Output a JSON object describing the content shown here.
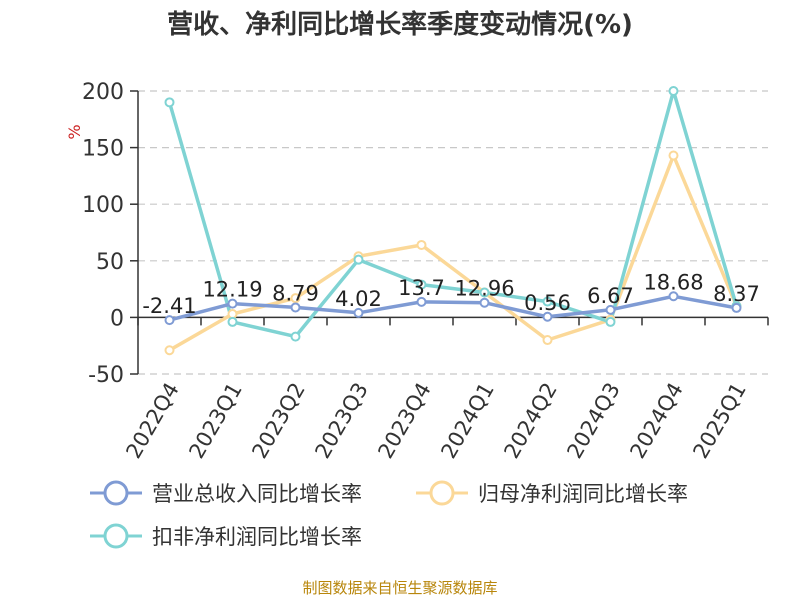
{
  "chart_data": {
    "type": "line",
    "title": "营收、净利同比增长率季度变动情况(%)",
    "ylabel": "%",
    "categories": [
      "2022Q4",
      "2023Q1",
      "2023Q2",
      "2023Q3",
      "2023Q4",
      "2024Q1",
      "2024Q2",
      "2024Q3",
      "2024Q4",
      "2025Q1"
    ],
    "ylim": [
      -50,
      200
    ],
    "yticks": [
      "200",
      "150",
      "100",
      "50",
      "0",
      "-50"
    ],
    "grid": true,
    "legend_position": "bottom",
    "series": [
      {
        "name": "营业总收入同比增长率",
        "color": "#7f9bd4",
        "values": [
          -2.41,
          12.19,
          8.79,
          4.02,
          13.7,
          12.96,
          0.56,
          6.67,
          18.68,
          8.37
        ],
        "labels": [
          "-2.41",
          "12.19",
          "8.79",
          "4.02",
          "13.7",
          "12.96",
          "0.56",
          "6.67",
          "18.68",
          "8.37"
        ]
      },
      {
        "name": "归母净利润同比增长率",
        "color": "#fbd898",
        "values": [
          -29,
          3,
          17,
          54,
          64,
          22,
          -20,
          -2,
          143,
          10
        ]
      },
      {
        "name": "扣非净利润同比增长率",
        "color": "#7fd3d3",
        "values": [
          190,
          -4,
          -17,
          51,
          29,
          22,
          14,
          -4,
          200,
          10
        ]
      }
    ]
  },
  "source": "制图数据来自恒生聚源数据库"
}
